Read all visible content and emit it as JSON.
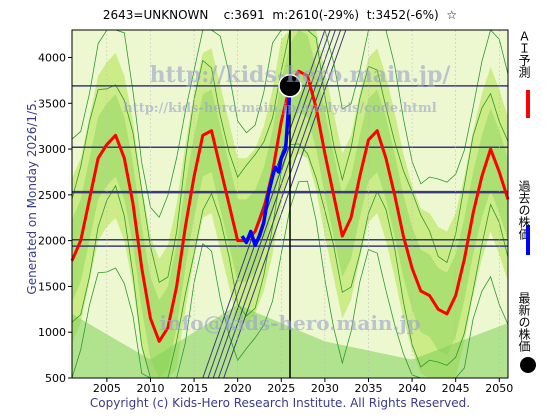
{
  "header": {
    "title": "2643=UNKNOWN    c:3691  m:2610(-29%)  t:3452(-6%)  ☆"
  },
  "side_text": "Generated on Monday 2026/1/5.",
  "footer": "Copyright (c) Kids-Hero Research Institute. All Rights Reserved.",
  "watermarks": [
    "http://kids-hero.main.jp/",
    "http://kids-hero.main.jp/analysis/code.html",
    "info@kids-hero.main.jp"
  ],
  "legend": [
    {
      "label": "ＡＩ予測",
      "color": "#ff0000",
      "icon": "red-line"
    },
    {
      "label": "過去の株価",
      "color": "#0000ff",
      "icon": "blue-line"
    },
    {
      "label": "最新の株価",
      "color": "#000000",
      "icon": "black-dot"
    }
  ],
  "chart_data": {
    "type": "line",
    "xlim": [
      2001,
      2051
    ],
    "ylim": [
      500,
      4300
    ],
    "x_ticks": [
      2005,
      2010,
      2015,
      2020,
      2025,
      2030,
      2035,
      2040,
      2045,
      2050
    ],
    "y_ticks": [
      500,
      1000,
      1500,
      2000,
      2500,
      3000,
      3500,
      4000
    ],
    "horizontal_lines": [
      1940,
      2010,
      2530,
      3020,
      3690
    ],
    "vertical_line_x": 2026,
    "latest_point": {
      "x": 2026,
      "y": 3691
    },
    "series": [
      {
        "name": "ＡＩ予測",
        "color": "#ff0000",
        "points": [
          [
            2001,
            1780
          ],
          [
            2002,
            2000
          ],
          [
            2003,
            2450
          ],
          [
            2004,
            2900
          ],
          [
            2005,
            3050
          ],
          [
            2006,
            3150
          ],
          [
            2007,
            2900
          ],
          [
            2008,
            2400
          ],
          [
            2009,
            1700
          ],
          [
            2010,
            1150
          ],
          [
            2011,
            900
          ],
          [
            2012,
            1050
          ],
          [
            2013,
            1500
          ],
          [
            2014,
            2150
          ],
          [
            2015,
            2700
          ],
          [
            2016,
            3150
          ],
          [
            2017,
            3200
          ],
          [
            2018,
            2800
          ],
          [
            2019,
            2400
          ],
          [
            2020,
            2000
          ],
          [
            2021,
            2000
          ],
          [
            2022,
            2100
          ],
          [
            2023,
            2350
          ],
          [
            2024,
            2750
          ],
          [
            2025,
            3300
          ],
          [
            2026,
            3700
          ],
          [
            2027,
            3850
          ],
          [
            2028,
            3800
          ],
          [
            2029,
            3450
          ],
          [
            2030,
            2950
          ],
          [
            2031,
            2500
          ],
          [
            2032,
            2050
          ],
          [
            2033,
            2250
          ],
          [
            2034,
            2700
          ],
          [
            2035,
            3100
          ],
          [
            2036,
            3200
          ],
          [
            2037,
            2900
          ],
          [
            2038,
            2500
          ],
          [
            2039,
            2050
          ],
          [
            2040,
            1700
          ],
          [
            2041,
            1450
          ],
          [
            2042,
            1400
          ],
          [
            2043,
            1250
          ],
          [
            2044,
            1200
          ],
          [
            2045,
            1400
          ],
          [
            2046,
            1800
          ],
          [
            2047,
            2300
          ],
          [
            2048,
            2700
          ],
          [
            2049,
            3000
          ],
          [
            2050,
            2750
          ],
          [
            2051,
            2450
          ]
        ]
      },
      {
        "name": "過去の株価",
        "color": "#0000ff",
        "points": [
          [
            2020.5,
            2050
          ],
          [
            2021,
            1980
          ],
          [
            2021.5,
            2100
          ],
          [
            2022,
            1950
          ],
          [
            2022.5,
            2050
          ],
          [
            2023,
            2200
          ],
          [
            2023.5,
            2500
          ],
          [
            2024,
            2700
          ],
          [
            2024.3,
            2800
          ],
          [
            2024.7,
            2750
          ],
          [
            2025,
            2900
          ],
          [
            2025.5,
            3000
          ],
          [
            2026,
            3691
          ]
        ]
      }
    ]
  }
}
